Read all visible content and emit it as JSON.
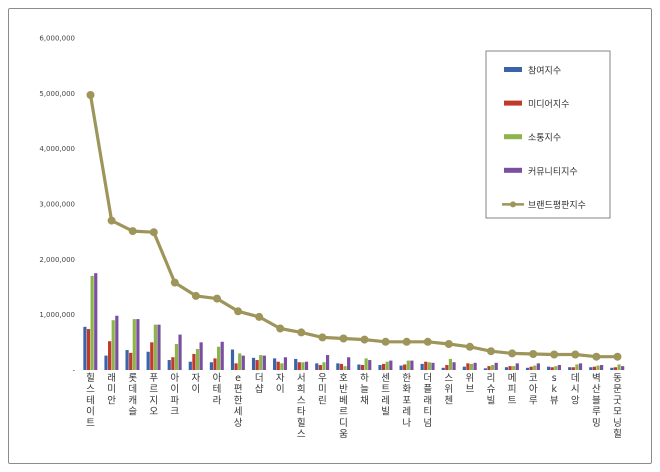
{
  "chart_data": {
    "type": "bar",
    "title": "",
    "xlabel": "",
    "ylabel": "",
    "ylim": [
      0,
      6000000
    ],
    "yticks": [
      "-",
      "1,000,000",
      "2,000,000",
      "3,000,000",
      "4,000,000",
      "5,000,000",
      "6,000,000"
    ],
    "grid": false,
    "legend_position": "top-right",
    "categories": [
      "힐스테이트",
      "래미안",
      "롯데캐슬",
      "푸르지오",
      "아이파크",
      "자이",
      "아테라",
      "e편한세상",
      "더샵",
      "자이",
      "서희스타힐스",
      "우미린",
      "호반베르디움",
      "하늘채",
      "센트레빌",
      "한화포레나",
      "더플래티넘",
      "스위첸",
      "위브",
      "리슈빌",
      "메피트",
      "코아루",
      "sk뷰",
      "데시앙",
      "벽산블루밍",
      "동문굿모닝힐"
    ],
    "series": [
      {
        "name": "참여지수",
        "type": "bar",
        "color": "#3b63a8",
        "values": [
          780000,
          260000,
          360000,
          330000,
          180000,
          150000,
          140000,
          370000,
          220000,
          210000,
          200000,
          120000,
          120000,
          100000,
          90000,
          80000,
          110000,
          40000,
          60000,
          30000,
          50000,
          40000,
          60000,
          50000,
          50000,
          40000
        ]
      },
      {
        "name": "미디어지수",
        "type": "bar",
        "color": "#c0392b",
        "values": [
          740000,
          520000,
          310000,
          500000,
          230000,
          290000,
          210000,
          120000,
          180000,
          150000,
          140000,
          90000,
          110000,
          90000,
          110000,
          100000,
          150000,
          90000,
          120000,
          70000,
          70000,
          60000,
          50000,
          50000,
          60000,
          50000
        ]
      },
      {
        "name": "소통지수",
        "type": "bar",
        "color": "#8db44a",
        "values": [
          1700000,
          900000,
          920000,
          820000,
          470000,
          380000,
          420000,
          300000,
          270000,
          120000,
          140000,
          140000,
          70000,
          210000,
          150000,
          170000,
          140000,
          200000,
          110000,
          90000,
          70000,
          80000,
          70000,
          100000,
          80000,
          100000
        ]
      },
      {
        "name": "커뮤니티지수",
        "type": "bar",
        "color": "#7a4fa0",
        "values": [
          1750000,
          980000,
          920000,
          820000,
          640000,
          500000,
          510000,
          260000,
          260000,
          230000,
          150000,
          270000,
          230000,
          180000,
          170000,
          170000,
          130000,
          140000,
          130000,
          130000,
          120000,
          120000,
          90000,
          120000,
          90000,
          70000
        ]
      },
      {
        "name": "브랜드평판지수",
        "type": "line",
        "color": "#9e955a",
        "values": [
          4970000,
          2700000,
          2510000,
          2490000,
          1580000,
          1340000,
          1290000,
          1060000,
          960000,
          750000,
          680000,
          590000,
          570000,
          550000,
          510000,
          510000,
          510000,
          470000,
          420000,
          340000,
          300000,
          290000,
          280000,
          280000,
          240000,
          240000
        ]
      }
    ]
  }
}
